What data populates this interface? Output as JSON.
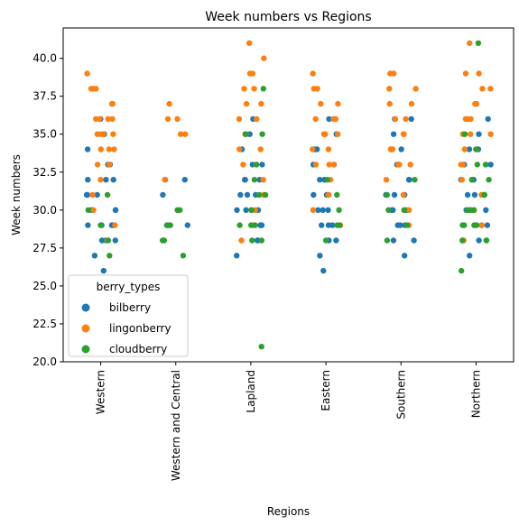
{
  "chart_data": {
    "type": "scatter",
    "subtype": "strip",
    "title": "Week numbers vs Regions",
    "xlabel": "Regions",
    "ylabel": "Week numbers",
    "ylim": [
      20.0,
      42.0
    ],
    "yticks": [
      "20.0",
      "22.5",
      "25.0",
      "27.5",
      "30.0",
      "32.5",
      "35.0",
      "37.5",
      "40.0"
    ],
    "categories": [
      "Western",
      "Western and Central",
      "Lapland",
      "Eastern",
      "Southern",
      "Northern"
    ],
    "grid": false,
    "legend": {
      "title": "berry_types",
      "position": "lower-left"
    },
    "series": [
      {
        "name": "bilberry",
        "color": "#1f77b4",
        "values": [
          [
            26,
            27,
            28,
            28,
            28,
            29,
            29,
            29,
            29,
            30,
            30,
            30,
            30,
            31,
            31,
            31,
            32,
            32,
            32,
            33,
            33,
            34,
            35,
            36
          ],
          [
            29,
            29,
            31,
            32,
            32
          ],
          [
            27,
            28,
            28,
            29,
            29,
            29,
            30,
            30,
            30,
            31,
            31,
            31,
            32,
            32,
            32,
            33,
            33,
            34,
            35,
            36
          ],
          [
            26,
            27,
            28,
            28,
            29,
            29,
            29,
            30,
            30,
            30,
            31,
            31,
            31,
            32,
            32,
            32,
            33,
            33,
            34,
            34,
            35,
            36
          ],
          [
            27,
            28,
            28,
            29,
            29,
            29,
            30,
            30,
            30,
            31,
            31,
            31,
            32,
            32,
            33,
            33,
            34,
            35,
            36,
            36
          ],
          [
            27,
            28,
            28,
            29,
            29,
            29,
            30,
            30,
            30,
            31,
            31,
            31,
            32,
            32,
            32,
            33,
            33,
            34,
            34,
            35,
            36
          ]
        ]
      },
      {
        "name": "lingonberry",
        "color": "#ff7f0e",
        "values": [
          [
            28,
            29,
            30,
            31,
            32,
            33,
            33,
            34,
            34,
            34,
            35,
            35,
            35,
            35,
            36,
            36,
            36,
            36,
            37,
            37,
            38,
            38,
            38,
            39
          ],
          [
            32,
            35,
            35,
            36,
            36,
            37
          ],
          [
            28,
            29,
            30,
            31,
            32,
            33,
            33,
            34,
            34,
            35,
            35,
            36,
            36,
            37,
            37,
            38,
            38,
            39,
            39,
            40,
            41
          ],
          [
            29,
            30,
            31,
            32,
            33,
            33,
            33,
            34,
            34,
            35,
            35,
            35,
            36,
            36,
            36,
            37,
            37,
            38,
            38,
            39
          ],
          [
            29,
            30,
            31,
            32,
            33,
            33,
            33,
            34,
            34,
            34,
            35,
            35,
            36,
            36,
            37,
            37,
            38,
            38,
            39,
            39
          ],
          [
            28,
            29,
            30,
            31,
            32,
            33,
            33,
            34,
            34,
            35,
            35,
            35,
            36,
            36,
            36,
            37,
            37,
            38,
            38,
            39,
            39,
            41
          ]
        ]
      },
      {
        "name": "cloudberry",
        "color": "#2ca02c",
        "values": [
          [
            27,
            28,
            29,
            30,
            31
          ],
          [
            27,
            28,
            28,
            29,
            29,
            29,
            30,
            30
          ],
          [
            21,
            28,
            28,
            29,
            29,
            29,
            30,
            30,
            31,
            31,
            32,
            33,
            35,
            35,
            38
          ],
          [
            28,
            29,
            29,
            30,
            31,
            32
          ],
          [
            28,
            29,
            30,
            30,
            31,
            32
          ],
          [
            26,
            28,
            28,
            28,
            29,
            29,
            29,
            29,
            30,
            30,
            30,
            31,
            31,
            32,
            32,
            33,
            33,
            34,
            35,
            41
          ]
        ]
      }
    ]
  }
}
